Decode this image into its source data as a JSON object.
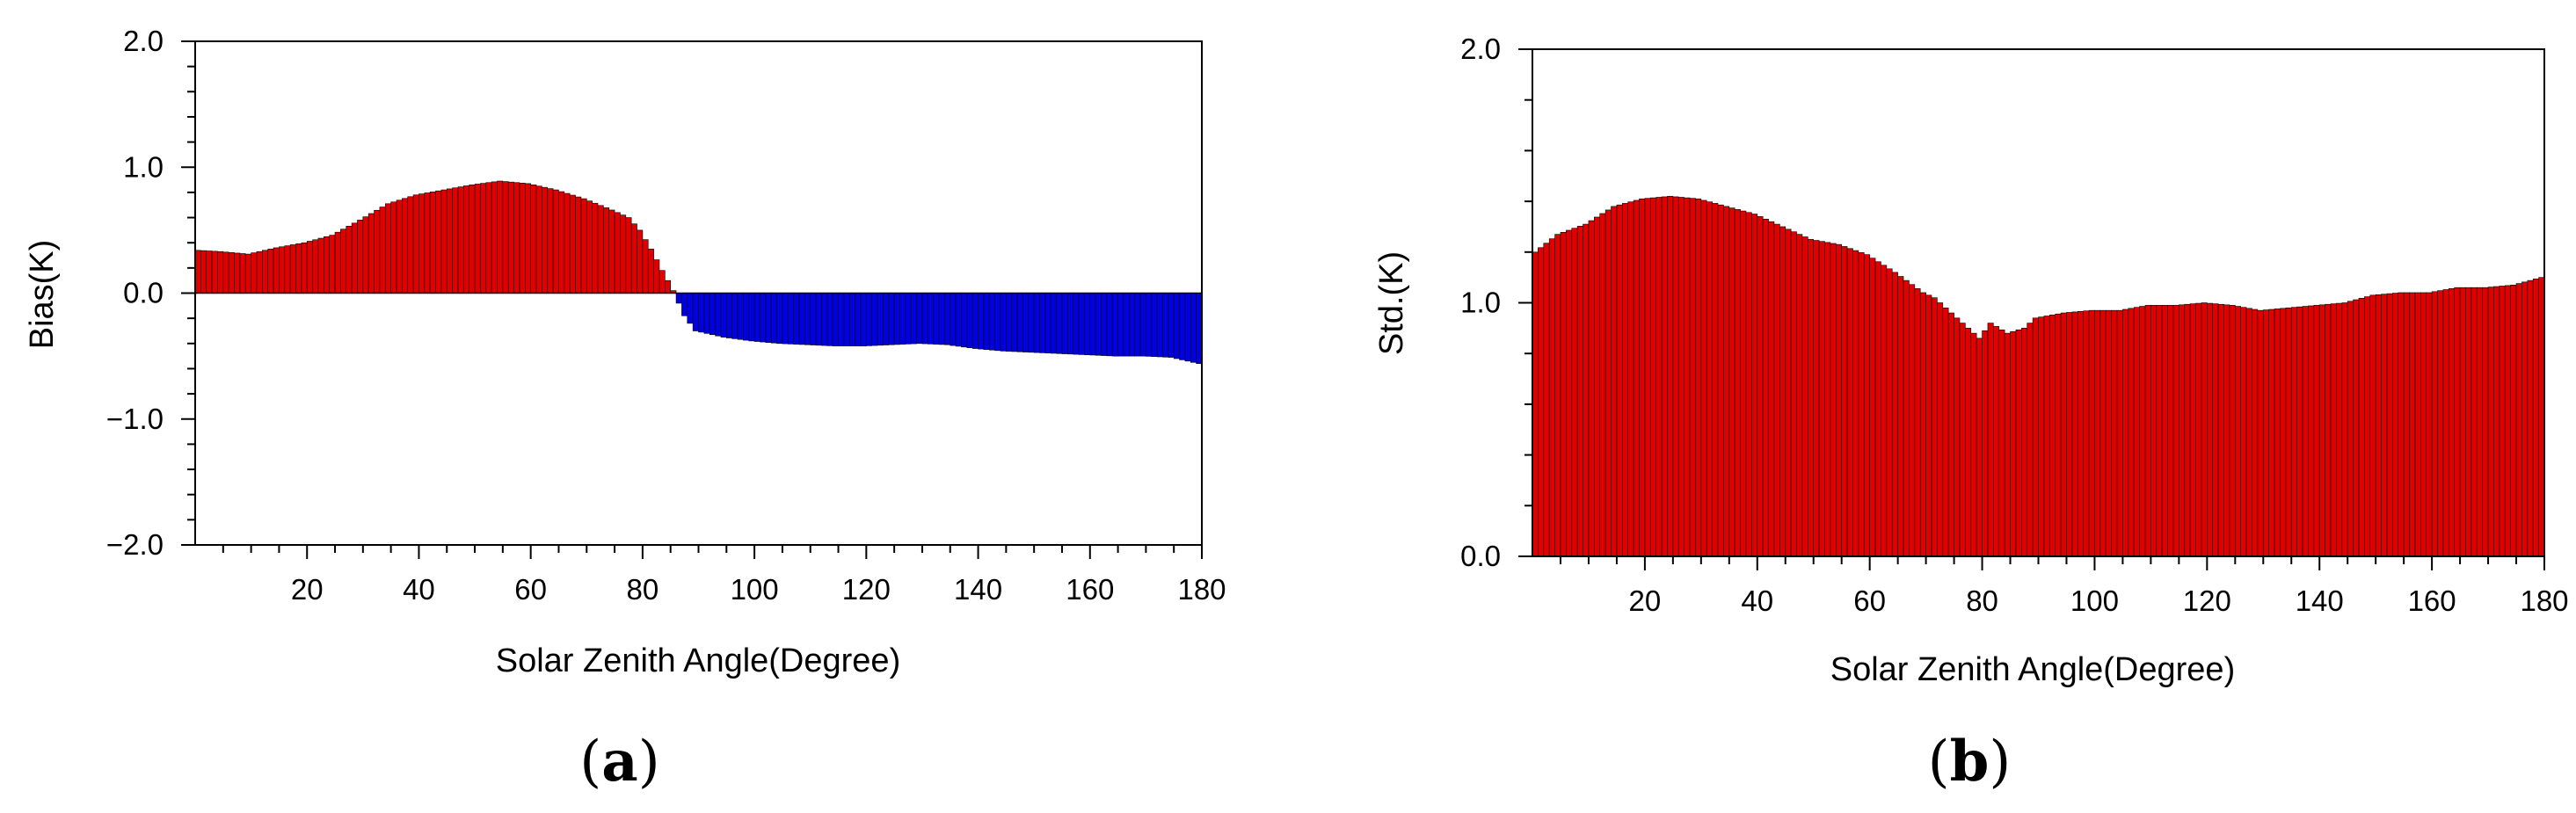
{
  "colors": {
    "positive": "#e00000",
    "negative": "#0000e0",
    "axis": "#000000",
    "frame": "#000000"
  },
  "panels": [
    {
      "label_open": "(",
      "label_letter": "a",
      "label_close": ")"
    },
    {
      "label_open": "(",
      "label_letter": "b",
      "label_close": ")"
    }
  ],
  "chart_data": [
    {
      "type": "bar",
      "title": "",
      "xlabel": "Solar Zenith Angle(Degree)",
      "ylabel": "Bias(K)",
      "xlim": [
        0,
        180
      ],
      "ylim": [
        -2.0,
        2.0
      ],
      "xticks": [
        20,
        40,
        60,
        80,
        100,
        120,
        140,
        160,
        180
      ],
      "xtick_labels": [
        "20",
        "40",
        "60",
        "80",
        "100",
        "120",
        "140",
        "160",
        "180"
      ],
      "yticks": [
        -2.0,
        -1.0,
        0.0,
        1.0,
        2.0
      ],
      "ytick_labels": [
        "−2.0",
        "−1.0",
        "0.0",
        "1.0",
        "2.0"
      ],
      "x": [
        1,
        5,
        10,
        15,
        20,
        25,
        30,
        35,
        40,
        45,
        50,
        55,
        60,
        65,
        70,
        75,
        78,
        80,
        82,
        84,
        86,
        88,
        90,
        95,
        100,
        105,
        110,
        115,
        120,
        125,
        130,
        135,
        140,
        145,
        150,
        155,
        160,
        165,
        170,
        175,
        180
      ],
      "values": [
        0.34,
        0.33,
        0.31,
        0.36,
        0.4,
        0.46,
        0.58,
        0.71,
        0.78,
        0.82,
        0.86,
        0.89,
        0.87,
        0.82,
        0.75,
        0.66,
        0.6,
        0.5,
        0.35,
        0.18,
        0.02,
        -0.18,
        -0.3,
        -0.35,
        -0.38,
        -0.4,
        -0.41,
        -0.42,
        -0.42,
        -0.41,
        -0.4,
        -0.41,
        -0.44,
        -0.46,
        -0.47,
        -0.48,
        -0.49,
        -0.5,
        -0.5,
        -0.51,
        -0.56
      ],
      "bar_width": 1,
      "positive_color": "#e00000",
      "negative_color": "#0000e0"
    },
    {
      "type": "bar",
      "title": "",
      "xlabel": "Solar Zenith Angle(Degree)",
      "ylabel": "Std.(K)",
      "xlim": [
        0,
        180
      ],
      "ylim": [
        0.0,
        2.0
      ],
      "xticks": [
        20,
        40,
        60,
        80,
        100,
        120,
        140,
        160,
        180
      ],
      "xtick_labels": [
        "20",
        "40",
        "60",
        "80",
        "100",
        "120",
        "140",
        "160",
        "180"
      ],
      "yticks": [
        0.0,
        1.0,
        2.0
      ],
      "ytick_labels": [
        "0.0",
        "1.0",
        "2.0"
      ],
      "x": [
        1,
        5,
        10,
        15,
        20,
        25,
        30,
        35,
        40,
        45,
        50,
        55,
        60,
        65,
        70,
        72,
        75,
        78,
        80,
        82,
        85,
        88,
        90,
        95,
        100,
        105,
        110,
        115,
        120,
        125,
        130,
        135,
        140,
        145,
        150,
        155,
        160,
        165,
        170,
        175,
        180
      ],
      "values": [
        1.2,
        1.27,
        1.31,
        1.38,
        1.41,
        1.42,
        1.41,
        1.38,
        1.35,
        1.3,
        1.25,
        1.23,
        1.19,
        1.12,
        1.04,
        1.02,
        0.96,
        0.9,
        0.86,
        0.92,
        0.88,
        0.9,
        0.94,
        0.96,
        0.97,
        0.97,
        0.99,
        0.99,
        1.0,
        0.99,
        0.97,
        0.98,
        0.99,
        1.0,
        1.03,
        1.04,
        1.04,
        1.06,
        1.06,
        1.07,
        1.1
      ],
      "bar_width": 1,
      "positive_color": "#e00000"
    }
  ]
}
